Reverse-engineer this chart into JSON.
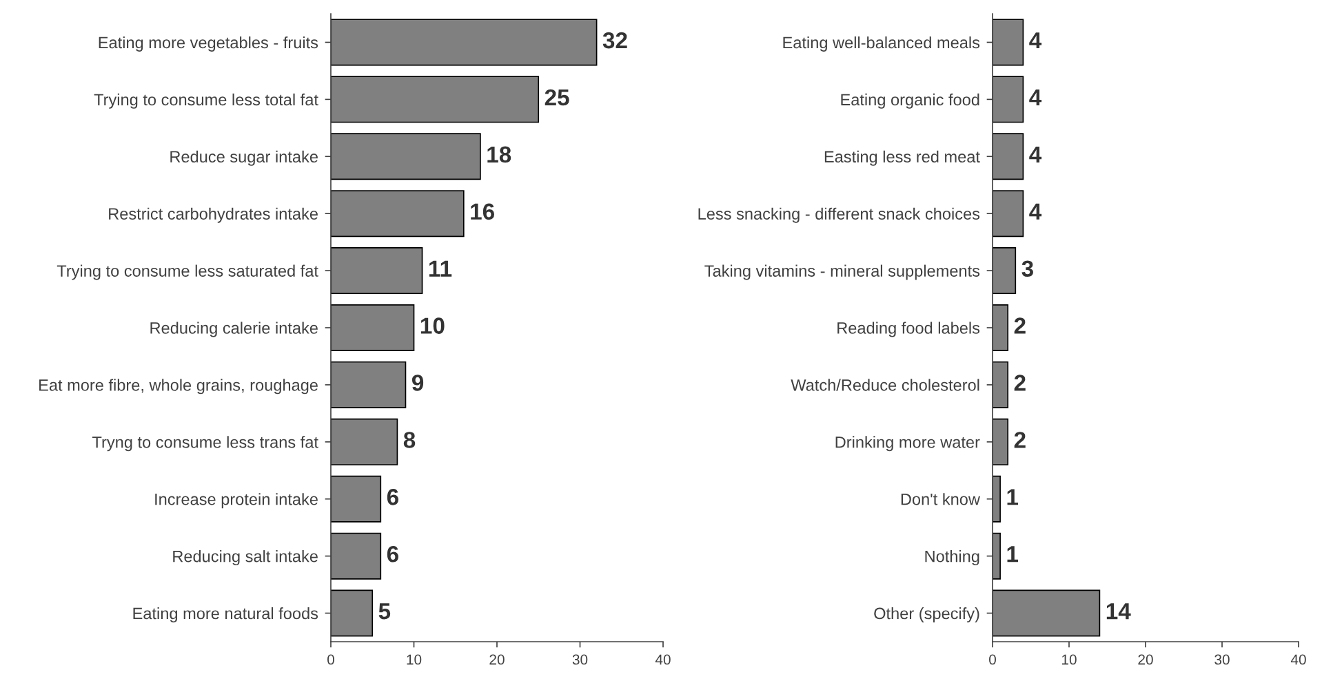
{
  "chart_data": [
    {
      "type": "bar",
      "orientation": "horizontal",
      "categories": [
        "Eating more vegetables - fruits",
        "Trying to consume less total fat",
        "Reduce sugar intake",
        "Restrict carbohydrates intake",
        "Trying to consume less saturated fat",
        "Reducing calerie intake",
        "Eat more fibre, whole grains, roughage",
        "Tryng to consume less trans fat",
        "Increase protein intake",
        "Reducing salt intake",
        "Eating more natural foods"
      ],
      "values": [
        32,
        25,
        18,
        16,
        11,
        10,
        9,
        8,
        6,
        6,
        5
      ],
      "color": "#808080",
      "xlim": [
        0,
        40
      ],
      "xticks": [
        0,
        10,
        20,
        30,
        40
      ],
      "data_labels": true,
      "grid": false,
      "legend": false
    },
    {
      "type": "bar",
      "orientation": "horizontal",
      "categories": [
        "Eating well-balanced meals",
        "Eating organic food",
        "Easting less red meat",
        "Less snacking - different snack choices",
        "Taking vitamins - mineral supplements",
        "Reading food labels",
        "Watch/Reduce cholesterol",
        "Drinking more water",
        "Don't know",
        "Nothing",
        "Other (specify)"
      ],
      "values": [
        4,
        4,
        4,
        4,
        3,
        2,
        2,
        2,
        1,
        1,
        14
      ],
      "color": "#808080",
      "xlim": [
        0,
        40
      ],
      "xticks": [
        0,
        10,
        20,
        30,
        40
      ],
      "data_labels": true,
      "grid": false,
      "legend": false
    }
  ]
}
